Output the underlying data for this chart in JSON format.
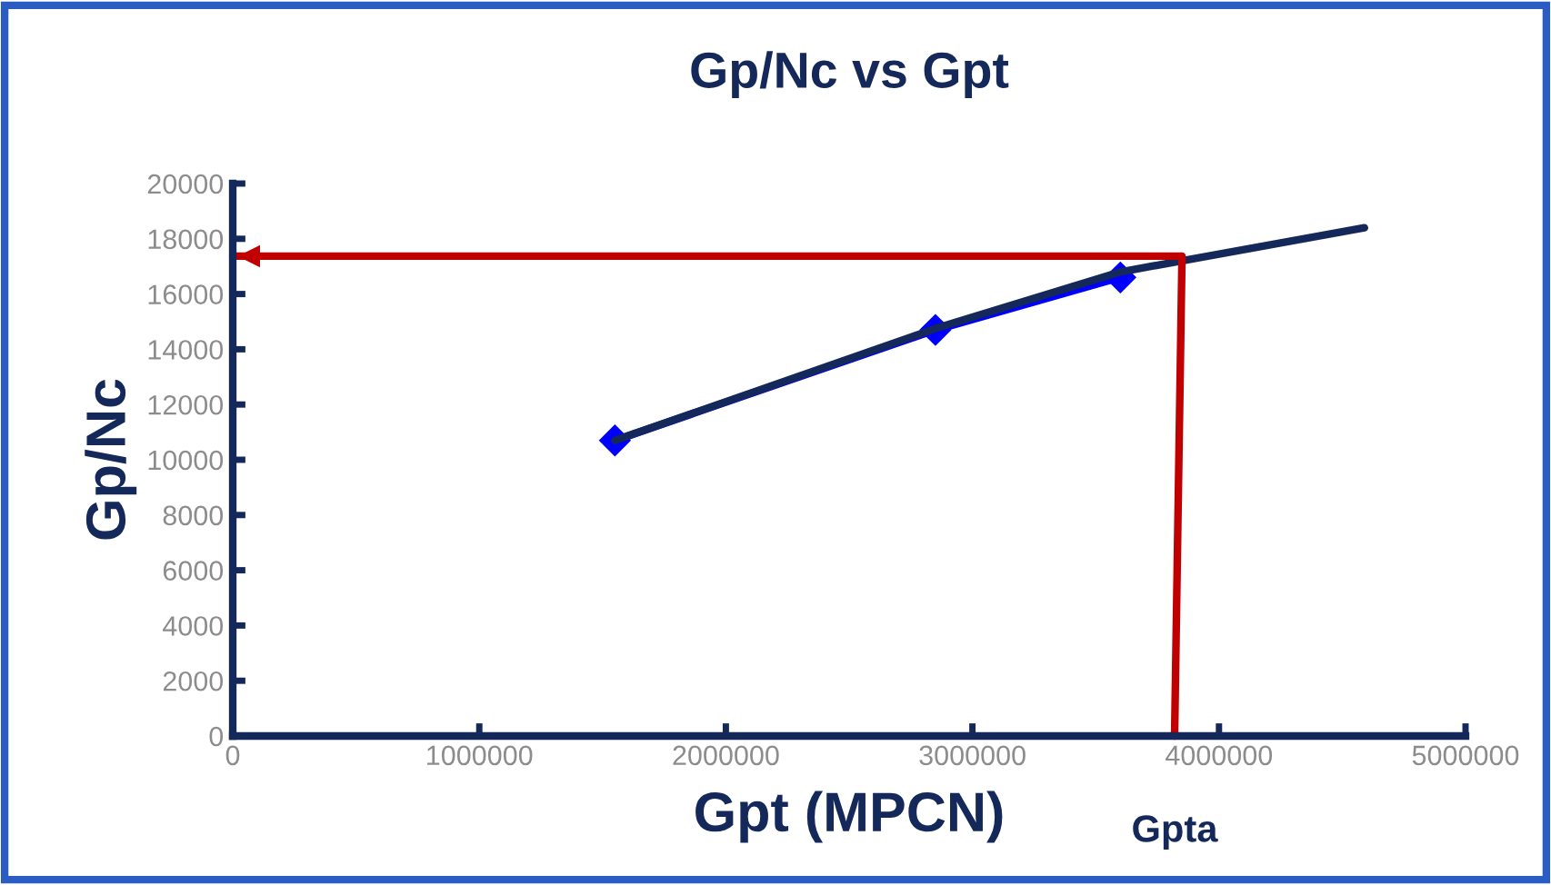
{
  "chart_data": {
    "type": "line",
    "title": "Gp/Nc vs Gpt",
    "xlabel": "Gpt (MPCN)",
    "ylabel": "Gp/Nc",
    "xlim": [
      0,
      5000000
    ],
    "xticks": [
      0,
      1000000,
      2000000,
      3000000,
      4000000,
      5000000
    ],
    "ylim": [
      0,
      20000
    ],
    "yticks": [
      0,
      2000,
      4000,
      6000,
      8000,
      10000,
      12000,
      14000,
      16000,
      18000,
      20000
    ],
    "series": [
      {
        "color": "#0000ff",
        "marker": "diamond",
        "x": [
          1550000,
          2850000,
          3600000
        ],
        "values": [
          10700,
          14700,
          16600
        ]
      },
      {
        "color": "#14285a",
        "x": [
          1550000,
          2850000,
          3600000,
          4590000
        ],
        "values": [
          10700,
          14750,
          16800,
          18400
        ]
      },
      {
        "color": "#c00000",
        "x": [
          3820000,
          3850000,
          0
        ],
        "values": [
          0,
          17370,
          17370
        ]
      }
    ],
    "annotations": [
      {
        "text": "Gpta",
        "x": 3820000,
        "y": 0
      }
    ]
  }
}
